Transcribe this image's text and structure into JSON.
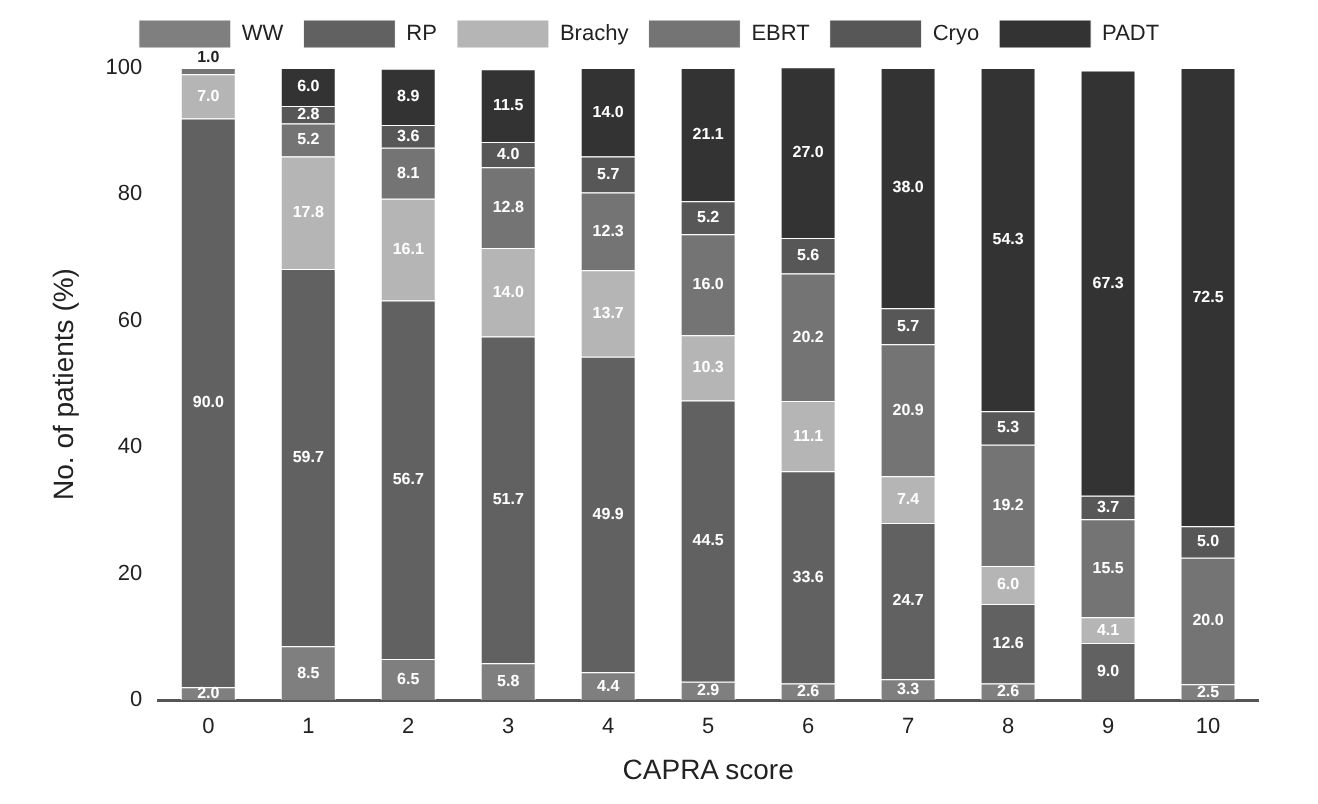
{
  "chart_data": {
    "type": "bar",
    "stacked": true,
    "xlabel": "CAPRA score",
    "ylabel": "No. of patients (%)",
    "categories": [
      "0",
      "1",
      "2",
      "3",
      "4",
      "5",
      "6",
      "7",
      "8",
      "9",
      "10"
    ],
    "series": [
      {
        "name": "WW",
        "color": "#7f7f7f",
        "values": [
          2.0,
          8.5,
          6.5,
          5.8,
          4.4,
          2.9,
          2.6,
          3.3,
          2.6,
          null,
          2.5
        ],
        "value_labels": [
          "2.0",
          "8.5",
          "6.5",
          "5.8",
          "4.4",
          "2.9",
          "2.6",
          "3.3",
          "2.6",
          null,
          "2.5"
        ]
      },
      {
        "name": "RP",
        "color": "#616161",
        "values": [
          90.0,
          59.7,
          56.7,
          51.7,
          49.9,
          44.5,
          33.6,
          24.7,
          12.6,
          9.0,
          null
        ],
        "value_labels": [
          "90.0",
          "59.7",
          "56.7",
          "51.7",
          "49.9",
          "44.5",
          "33.6",
          "24.7",
          "12.6",
          "9.0",
          null
        ]
      },
      {
        "name": "Brachy",
        "color": "#b5b5b5",
        "values": [
          7.0,
          17.8,
          16.1,
          14.0,
          13.7,
          10.3,
          11.1,
          7.4,
          6.0,
          4.1,
          null
        ],
        "value_labels": [
          "7.0",
          "17.8",
          "16.1",
          "14.0",
          "13.7",
          "10.3",
          "11.1",
          "7.4",
          "6.0",
          "4.1",
          null
        ]
      },
      {
        "name": "EBRT",
        "color": "#747474",
        "values": [
          1.0,
          5.2,
          8.1,
          12.8,
          12.3,
          16.0,
          20.2,
          20.9,
          19.2,
          15.5,
          20.0
        ],
        "value_labels": [
          "1.0",
          "5.2",
          "8.1",
          "12.8",
          "12.3",
          "16.0",
          "20.2",
          "20.9",
          "19.2",
          "15.5",
          "20.0"
        ]
      },
      {
        "name": "Cryo",
        "color": "#575757",
        "values": [
          null,
          2.8,
          3.6,
          4.0,
          5.7,
          5.2,
          5.6,
          5.7,
          5.3,
          3.7,
          5.0
        ],
        "value_labels": [
          null,
          "2.8",
          "3.6",
          "4.0",
          "5.7",
          "5.2",
          "5.6",
          "5.7",
          "5.3",
          "3.7",
          "5.0"
        ]
      },
      {
        "name": "PADT",
        "color": "#333333",
        "values": [
          null,
          6.0,
          8.9,
          11.5,
          14.0,
          21.1,
          27.0,
          38.0,
          54.3,
          67.3,
          72.5
        ],
        "value_labels": [
          null,
          "6.0",
          "8.9",
          "11.5",
          "14.0",
          "21.1",
          "27.0",
          "38.0",
          "54.3",
          "67.3",
          "72.5"
        ]
      }
    ],
    "ylim": [
      0,
      100
    ],
    "yticks": [
      0,
      20,
      40,
      60,
      80,
      100
    ],
    "grid": false,
    "legend": "top"
  }
}
